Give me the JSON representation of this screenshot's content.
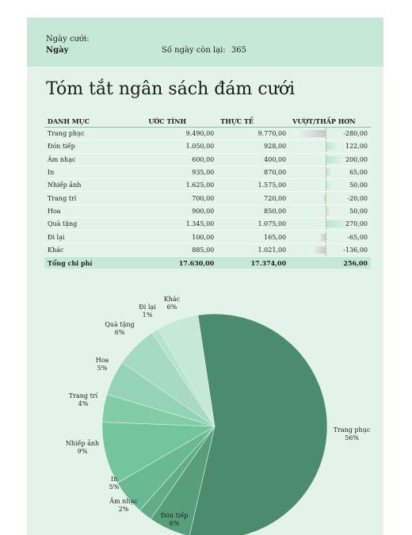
{
  "header": {
    "date_label": "Ngày cưới:",
    "date_value": "Ngày",
    "days_left_label": "Số ngày còn lại:",
    "days_left_value": "365"
  },
  "title": "Tóm tắt ngân sách đám cưới",
  "table": {
    "columns": [
      "DANH MỤC",
      "ƯỚC TÍNH",
      "THỰC TẾ",
      "VƯỢT/THẤP HƠN"
    ],
    "rows": [
      {
        "category": "Trang phục",
        "estimate": "9.490,00",
        "actual": "9.770,00",
        "difference": "-280,00",
        "diff_value": -280
      },
      {
        "category": "Đón tiếp",
        "estimate": "1.050,00",
        "actual": "928,00",
        "difference": "122,00",
        "diff_value": 122
      },
      {
        "category": "Âm nhạc",
        "estimate": "600,00",
        "actual": "400,00",
        "difference": "200,00",
        "diff_value": 200
      },
      {
        "category": "In",
        "estimate": "935,00",
        "actual": "870,00",
        "difference": "65,00",
        "diff_value": 65
      },
      {
        "category": "Nhiếp ảnh",
        "estimate": "1.625,00",
        "actual": "1.575,00",
        "difference": "50,00",
        "diff_value": 50
      },
      {
        "category": "Trang trí",
        "estimate": "700,00",
        "actual": "720,00",
        "difference": "-20,00",
        "diff_value": -20
      },
      {
        "category": "Hoa",
        "estimate": "900,00",
        "actual": "850,00",
        "difference": "50,00",
        "diff_value": 50
      },
      {
        "category": "Quà tặng",
        "estimate": "1.345,00",
        "actual": "1.075,00",
        "difference": "270,00",
        "diff_value": 270
      },
      {
        "category": "Đi lại",
        "estimate": "100,00",
        "actual": "165,00",
        "difference": "-65,00",
        "diff_value": -65
      },
      {
        "category": "Khác",
        "estimate": "885,00",
        "actual": "1.021,00",
        "difference": "-136,00",
        "diff_value": -136
      }
    ],
    "total": {
      "label": "Tổng chi phí",
      "estimate": "17.630,00",
      "actual": "17.374,00",
      "difference": "256,00"
    }
  },
  "colors": {
    "positive_bar": "#b8e6cc",
    "negative_bar": "#c8c8c8",
    "pie_palette": [
      "#4a8c6c",
      "#579e7b",
      "#60ad87",
      "#69ba92",
      "#73c59c",
      "#82cca6",
      "#94d3b3",
      "#a6dbbf",
      "#b7e2cb",
      "#c6e8d6",
      "#d5eee0"
    ]
  },
  "chart_data": {
    "type": "pie",
    "title": "",
    "slices": [
      {
        "label": "Trang phục",
        "value": 56,
        "display": "56%"
      },
      {
        "label": "Đón tiếp",
        "value": 6,
        "display": "6%"
      },
      {
        "label": "Âm nhạc",
        "value": 2,
        "display": "2%"
      },
      {
        "label": "In",
        "value": 5,
        "display": "5%"
      },
      {
        "label": "Nhiếp ảnh",
        "value": 9,
        "display": "9%"
      },
      {
        "label": "Trang trí",
        "value": 4,
        "display": "4%"
      },
      {
        "label": "Hoa",
        "value": 5,
        "display": "5%"
      },
      {
        "label": "Quà tặng",
        "value": 6,
        "display": "6%"
      },
      {
        "label": "Đi lại",
        "value": 1,
        "display": "1%"
      },
      {
        "label": "Khác",
        "value": 6,
        "display": "6%"
      }
    ]
  }
}
